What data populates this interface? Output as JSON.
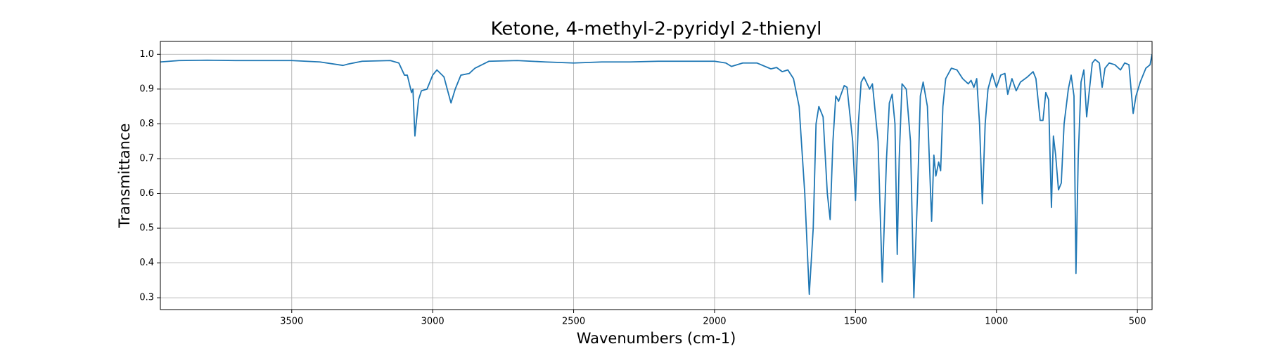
{
  "chart_data": {
    "type": "line",
    "title": "Ketone, 4-methyl-2-pyridyl 2-thienyl",
    "x_label": "Wavenumbers (cm-1)",
    "y_label": "Transmittance",
    "xlim": [
      3966,
      448
    ],
    "ylim": [
      0.266,
      1.037
    ],
    "xticks": [
      3500,
      3000,
      2500,
      2000,
      1500,
      1000,
      500
    ],
    "yticks": [
      0.3,
      0.4,
      0.5,
      0.6,
      0.7,
      0.8,
      0.9,
      {
        "value": 1,
        "label": "1.0"
      }
    ],
    "grid": true,
    "series": [
      {
        "name": "Transmittance",
        "color": "#1f77b4",
        "x": [
          3966,
          3900,
          3800,
          3700,
          3500,
          3400,
          3318,
          3300,
          3250,
          3150,
          3120,
          3100,
          3090,
          3075,
          3070,
          3063,
          3050,
          3040,
          3020,
          3000,
          2985,
          2960,
          2935,
          2920,
          2900,
          2870,
          2850,
          2800,
          2700,
          2600,
          2500,
          2400,
          2300,
          2200,
          2000,
          1960,
          1940,
          1900,
          1850,
          1800,
          1780,
          1760,
          1740,
          1720,
          1700,
          1680,
          1664,
          1650,
          1640,
          1630,
          1615,
          1600,
          1590,
          1580,
          1570,
          1560,
          1540,
          1530,
          1510,
          1500,
          1490,
          1480,
          1470,
          1450,
          1440,
          1420,
          1405,
          1390,
          1380,
          1370,
          1360,
          1352,
          1345,
          1335,
          1320,
          1305,
          1293,
          1280,
          1270,
          1260,
          1245,
          1230,
          1222,
          1215,
          1205,
          1198,
          1190,
          1180,
          1160,
          1140,
          1120,
          1100,
          1090,
          1080,
          1070,
          1060,
          1050,
          1040,
          1030,
          1015,
          1000,
          985,
          970,
          960,
          945,
          930,
          915,
          890,
          870,
          860,
          845,
          835,
          825,
          815,
          805,
          798,
          790,
          780,
          770,
          760,
          745,
          735,
          725,
          718,
          710,
          700,
          690,
          680,
          670,
          660,
          650,
          635,
          625,
          615,
          600,
          580,
          560,
          545,
          530,
          515,
          505,
          490,
          470,
          455,
          448
        ],
        "values": [
          0.978,
          0.982,
          0.983,
          0.982,
          0.982,
          0.978,
          0.968,
          0.972,
          0.98,
          0.982,
          0.975,
          0.94,
          0.94,
          0.89,
          0.9,
          0.765,
          0.87,
          0.895,
          0.9,
          0.94,
          0.955,
          0.935,
          0.86,
          0.9,
          0.94,
          0.945,
          0.96,
          0.98,
          0.982,
          0.978,
          0.975,
          0.978,
          0.978,
          0.98,
          0.98,
          0.975,
          0.965,
          0.975,
          0.975,
          0.958,
          0.962,
          0.95,
          0.955,
          0.93,
          0.85,
          0.6,
          0.31,
          0.5,
          0.8,
          0.85,
          0.82,
          0.6,
          0.525,
          0.75,
          0.88,
          0.865,
          0.91,
          0.905,
          0.75,
          0.58,
          0.8,
          0.92,
          0.935,
          0.9,
          0.915,
          0.75,
          0.345,
          0.7,
          0.86,
          0.885,
          0.8,
          0.425,
          0.7,
          0.915,
          0.9,
          0.75,
          0.3,
          0.6,
          0.88,
          0.92,
          0.85,
          0.52,
          0.71,
          0.65,
          0.69,
          0.665,
          0.85,
          0.93,
          0.96,
          0.955,
          0.93,
          0.915,
          0.925,
          0.905,
          0.93,
          0.8,
          0.57,
          0.8,
          0.9,
          0.945,
          0.905,
          0.94,
          0.945,
          0.885,
          0.93,
          0.895,
          0.92,
          0.935,
          0.95,
          0.93,
          0.81,
          0.81,
          0.89,
          0.87,
          0.56,
          0.765,
          0.71,
          0.61,
          0.63,
          0.8,
          0.9,
          0.94,
          0.88,
          0.37,
          0.7,
          0.92,
          0.955,
          0.82,
          0.9,
          0.975,
          0.985,
          0.975,
          0.905,
          0.96,
          0.975,
          0.97,
          0.955,
          0.975,
          0.97,
          0.83,
          0.88,
          0.92,
          0.96,
          0.97,
          1.0
        ]
      }
    ]
  }
}
